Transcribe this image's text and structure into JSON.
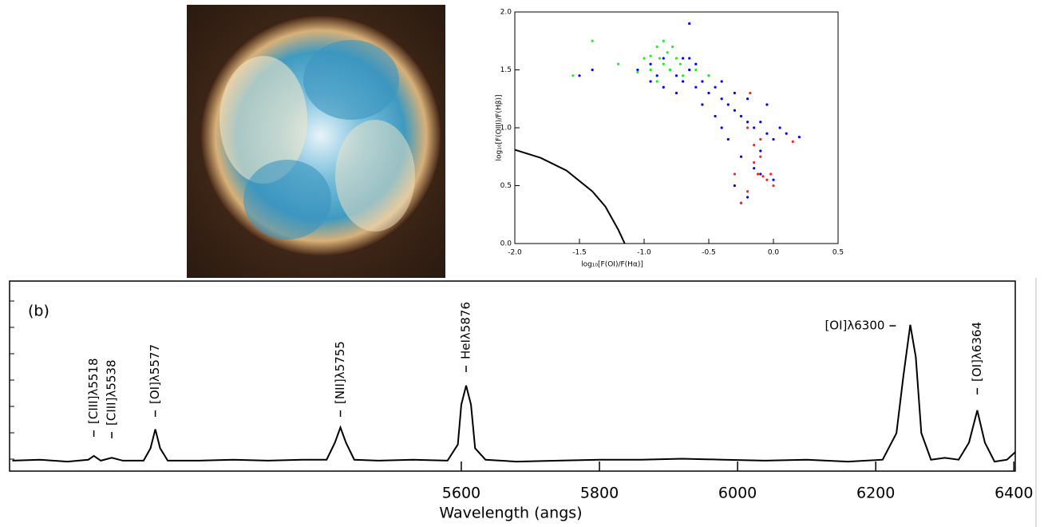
{
  "chart_data": [
    {
      "type": "scatter",
      "xlabel": "log₁₀[F(OI)/F(Hα)]",
      "ylabel": "log₁₀[F(OIII)/F(Hβ)]",
      "xlim": [
        -2.0,
        0.5
      ],
      "ylim": [
        0.0,
        2.0
      ],
      "xticks": [
        {
          "value": -2.0,
          "label": "-2.0"
        },
        {
          "value": -1.5,
          "label": "-1.5"
        },
        {
          "value": -1.0,
          "label": "-1.0"
        },
        {
          "value": -0.5,
          "label": "-0.5"
        },
        {
          "value": 0.0,
          "label": "0.0"
        },
        0.5
      ],
      "yticks": [
        {
          "value": 0.0,
          "label": "0.0"
        },
        0.5,
        {
          "value": 1.0,
          "label": "1.0"
        },
        1.5,
        {
          "value": 2.0,
          "label": "2.0"
        }
      ],
      "series": [
        {
          "color": "#0000ff",
          "marker": "dot",
          "x": [
            -1.05,
            -0.95,
            -0.9,
            -0.85,
            -0.8,
            -0.75,
            -0.7,
            -0.65,
            -0.6,
            -0.55,
            -0.5,
            -0.45,
            -0.4,
            -0.35,
            -0.3,
            -0.25,
            -0.2,
            -0.15,
            -0.1,
            -0.05,
            0.0,
            0.05,
            0.1,
            0.2,
            -1.4,
            -1.5,
            -0.95,
            -0.85,
            -0.7,
            -0.6,
            -0.5,
            -0.4,
            -0.3,
            -0.2,
            -0.1,
            -0.15,
            -0.25,
            -0.35,
            -0.45,
            -0.55,
            -0.75,
            -0.65,
            -0.3,
            -0.2,
            -0.1,
            0.0,
            -0.05,
            -0.65,
            -0.4,
            -0.25
          ],
          "values": [
            1.5,
            1.55,
            1.45,
            1.6,
            1.5,
            1.45,
            1.4,
            1.5,
            1.35,
            1.4,
            1.3,
            1.35,
            1.25,
            1.2,
            1.15,
            1.1,
            1.05,
            1.0,
            1.05,
            0.95,
            0.9,
            1.0,
            0.95,
            0.92,
            1.5,
            1.45,
            1.4,
            1.35,
            1.6,
            1.55,
            1.45,
            1.4,
            1.3,
            1.25,
            0.8,
            0.65,
            0.75,
            0.9,
            1.1,
            1.2,
            1.3,
            1.6,
            0.5,
            0.4,
            0.6,
            0.55,
            1.2,
            1.9,
            1.0,
            0.35
          ]
        },
        {
          "color": "#22ee22",
          "marker": "dot",
          "x": [
            -1.4,
            -1.2,
            -1.0,
            -0.95,
            -0.9,
            -0.88,
            -0.85,
            -0.82,
            -0.8,
            -0.78,
            -0.75,
            -0.72,
            -0.7,
            -0.9,
            -1.05,
            -0.95,
            -0.85,
            -0.6,
            -1.55,
            -0.5
          ],
          "values": [
            1.75,
            1.55,
            1.6,
            1.5,
            1.7,
            1.6,
            1.55,
            1.65,
            1.5,
            1.7,
            1.6,
            1.55,
            1.45,
            1.4,
            1.48,
            1.62,
            1.75,
            1.5,
            1.45,
            1.45
          ]
        },
        {
          "color": "#ff2222",
          "marker": "dot",
          "x": [
            -0.2,
            -0.15,
            -0.1,
            -0.12,
            -0.08,
            -0.05,
            -0.1,
            -0.15,
            -0.02,
            0.0,
            -0.2,
            -0.25,
            -0.18,
            -0.3,
            0.15
          ],
          "values": [
            1.0,
            0.85,
            0.75,
            0.6,
            0.58,
            0.55,
            0.9,
            0.7,
            0.6,
            0.5,
            0.45,
            0.35,
            1.3,
            0.6,
            0.88
          ]
        },
        {
          "color": "#000000",
          "marker": "line",
          "x": [
            -2.0,
            -1.8,
            -1.6,
            -1.4,
            -1.3,
            -1.2,
            -1.15
          ],
          "values": [
            0.81,
            0.74,
            0.63,
            0.45,
            0.32,
            0.12,
            0.0
          ]
        }
      ]
    },
    {
      "type": "line",
      "panel_label": "(b)",
      "xlabel": "Wavelength (angs)",
      "xlim": [
        4946,
        6402
      ],
      "ylim": [
        0,
        1
      ],
      "xticks": [
        5600,
        5800,
        6000,
        6200,
        6400
      ],
      "color": "#000000",
      "x": [
        4950,
        4990,
        5030,
        5060,
        5068,
        5078,
        5094,
        5110,
        5140,
        5150,
        5157,
        5164,
        5175,
        5220,
        5270,
        5320,
        5370,
        5405,
        5417,
        5425,
        5433,
        5445,
        5480,
        5530,
        5580,
        5595,
        5600,
        5607,
        5614,
        5620,
        5635,
        5680,
        5740,
        5800,
        5860,
        5920,
        5980,
        6040,
        6100,
        6160,
        6210,
        6230,
        6240,
        6250,
        6258,
        6266,
        6280,
        6300,
        6320,
        6335,
        6347,
        6358,
        6372,
        6390,
        6402
      ],
      "values": [
        0.055,
        0.06,
        0.05,
        0.06,
        0.08,
        0.055,
        0.07,
        0.055,
        0.055,
        0.12,
        0.22,
        0.12,
        0.055,
        0.055,
        0.06,
        0.055,
        0.06,
        0.06,
        0.15,
        0.23,
        0.15,
        0.06,
        0.055,
        0.06,
        0.055,
        0.14,
        0.35,
        0.45,
        0.35,
        0.12,
        0.06,
        0.05,
        0.055,
        0.06,
        0.06,
        0.065,
        0.06,
        0.055,
        0.06,
        0.05,
        0.06,
        0.2,
        0.5,
        0.77,
        0.6,
        0.2,
        0.06,
        0.07,
        0.06,
        0.15,
        0.32,
        0.15,
        0.05,
        0.06,
        0.1
      ],
      "annotations": [
        {
          "text": "[CIII]λ5518",
          "x": 5068
        },
        {
          "text": "[CIII]λ5538",
          "x": 5094
        },
        {
          "text": "[OI]λ5577",
          "x": 5157
        },
        {
          "text": "[NII]λ5755",
          "x": 5425
        },
        {
          "text": "HeIλ5876",
          "x": 5607
        },
        {
          "text": "[OI]λ6300",
          "x": 6250
        },
        {
          "text": "[OI]λ6364",
          "x": 6347
        }
      ]
    }
  ]
}
